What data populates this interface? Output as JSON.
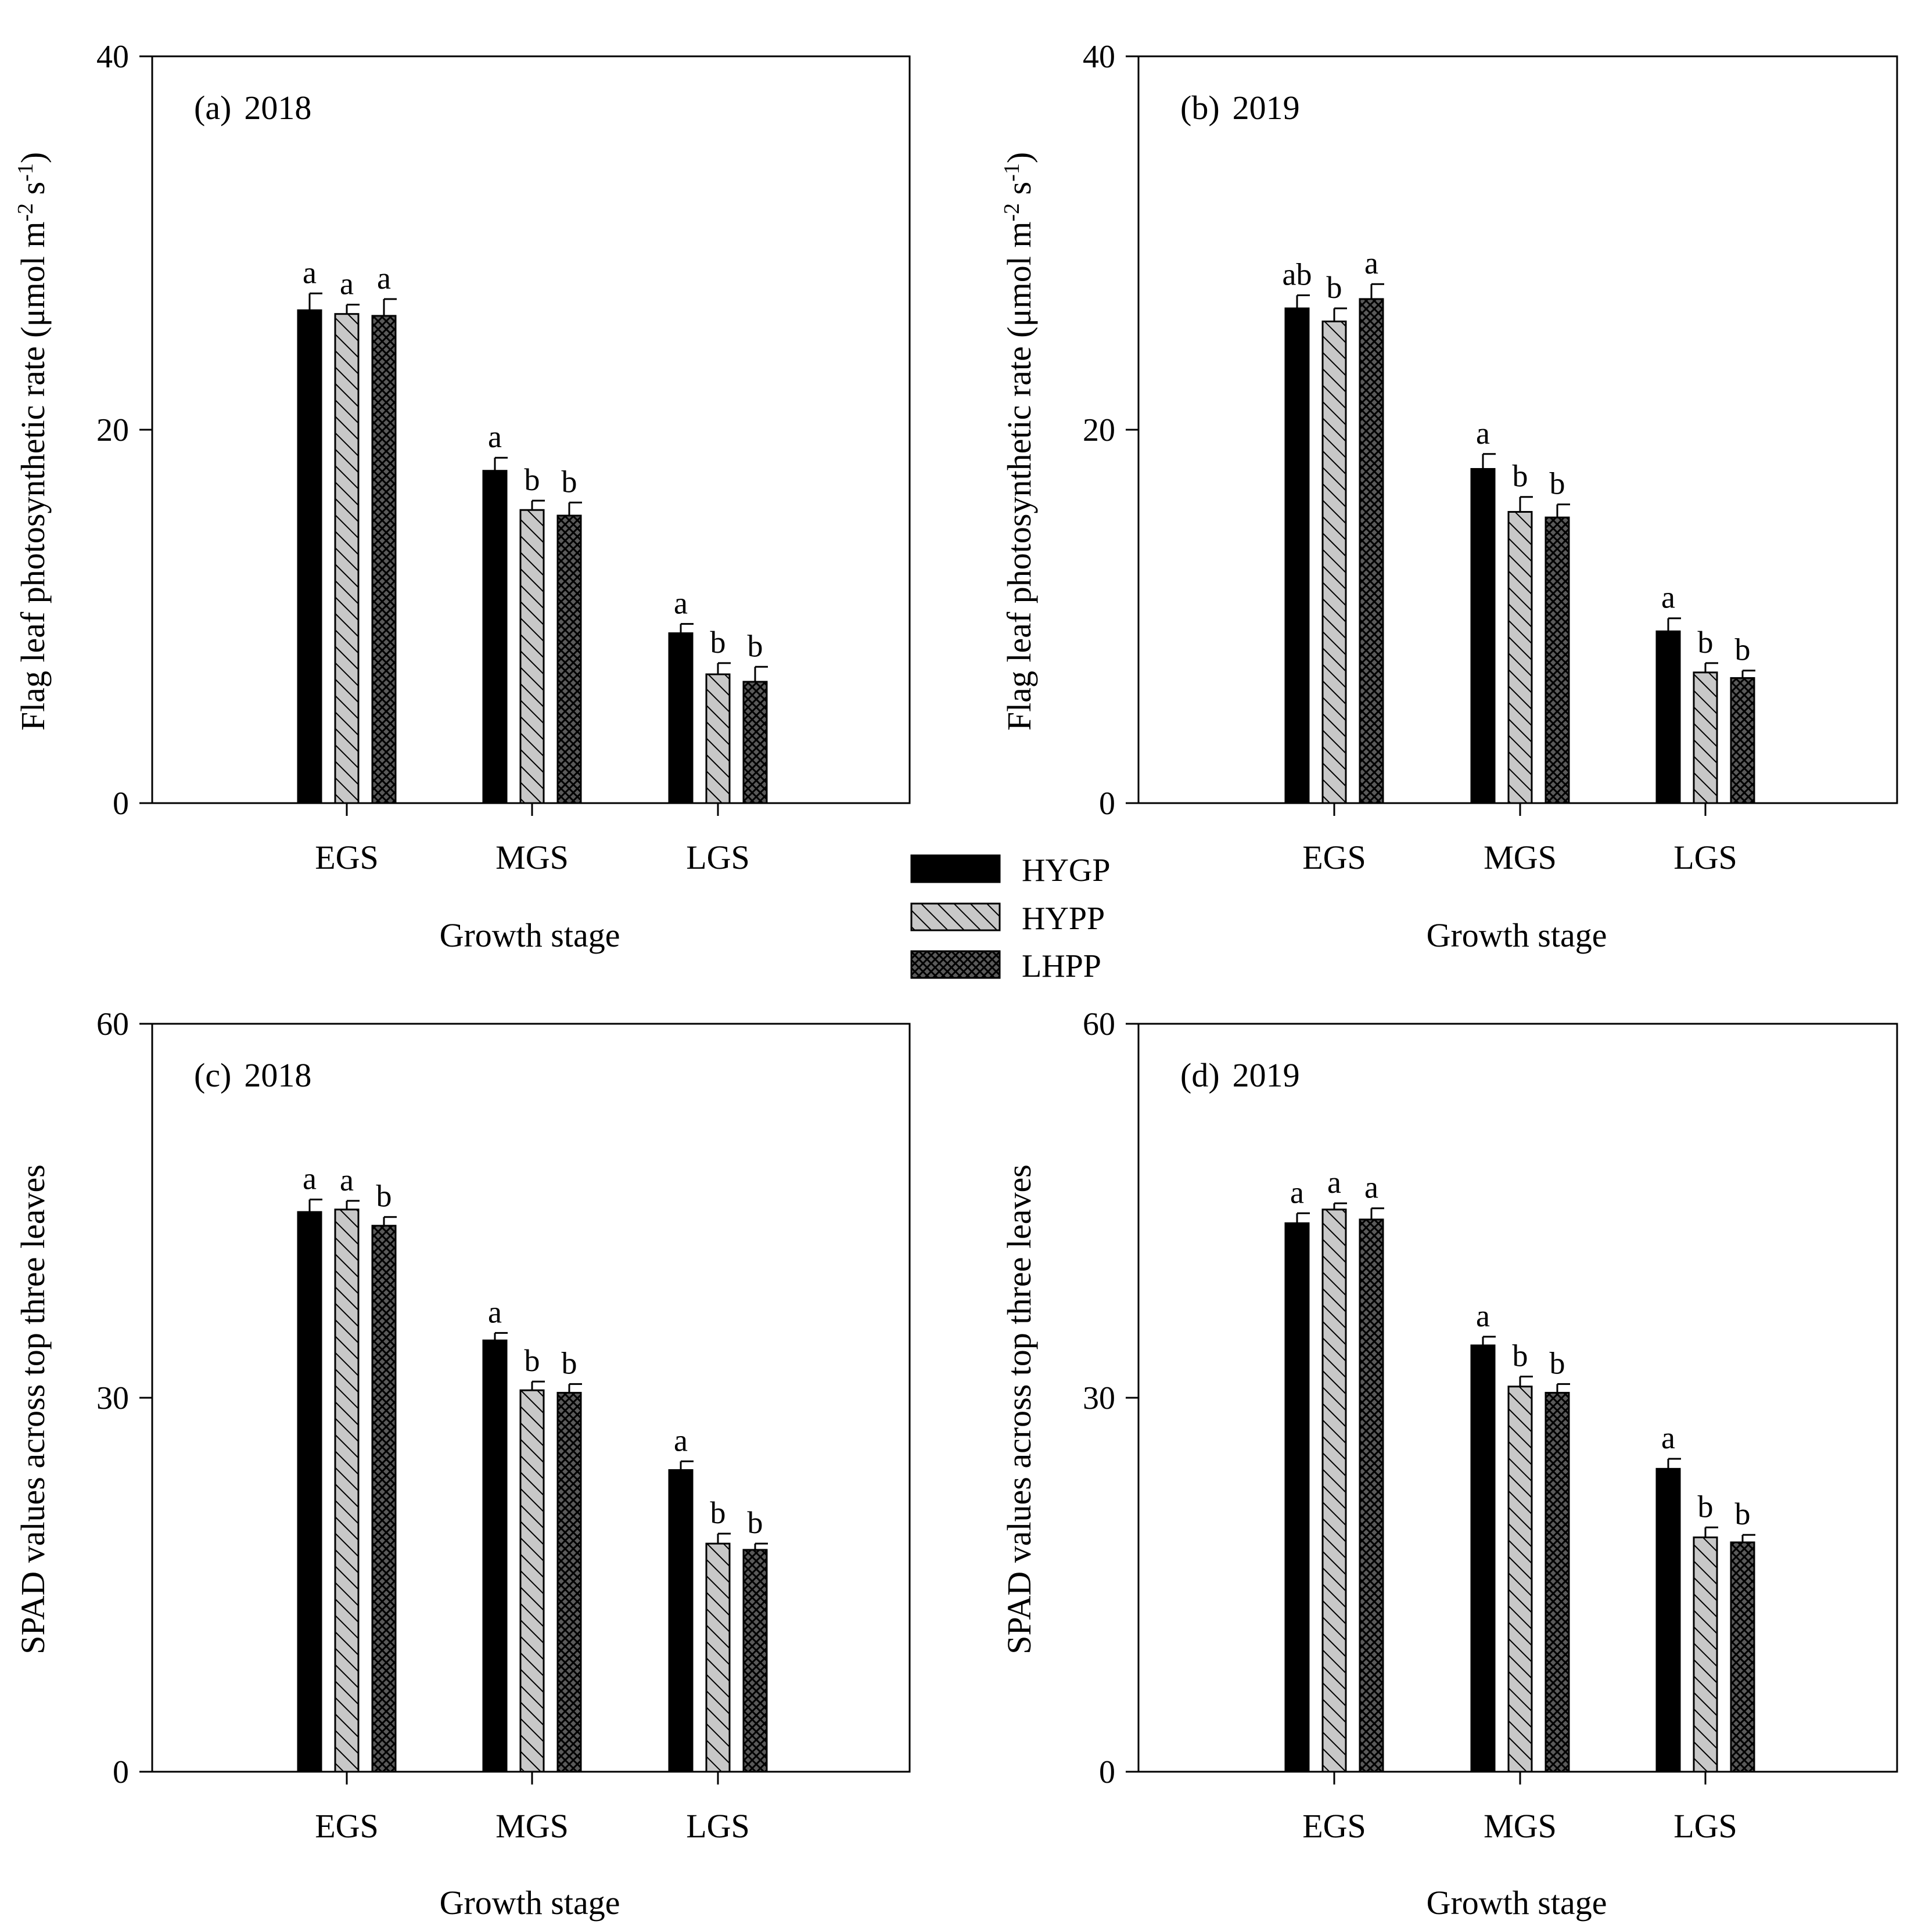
{
  "figure": {
    "legend": [
      {
        "name": "HYGP",
        "pattern": "solid"
      },
      {
        "name": "HYPP",
        "pattern": "diagonal"
      },
      {
        "name": "LHPP",
        "pattern": "crosshatch"
      }
    ],
    "colors": {
      "solid": "#000000",
      "diagonal_bg": "#c8c8c8",
      "crosshatch_bg": "#5a5a5a",
      "ink": "#000000"
    }
  },
  "chart_data": [
    {
      "id": "a",
      "type": "bar",
      "tag": "(a)",
      "year": "2018",
      "title": "(a) 2018",
      "categories": [
        "EGS",
        "MGS",
        "LGS"
      ],
      "xlabel": "Growth stage",
      "ylabel": "Flag leaf photosynthetic rate (μmol m-2 s-1)",
      "ylabel_parts": {
        "main": "Flag leaf photosynthetic rate (μmol m",
        "sup1": "-2",
        "mid": " s",
        "sup2": "-1",
        "end": ")"
      },
      "ylim": [
        0,
        40
      ],
      "yticks": [
        0,
        20,
        40
      ],
      "series": [
        {
          "name": "HYGP",
          "values": [
            26.4,
            17.8,
            9.1
          ],
          "errors": [
            0.9,
            0.7,
            0.5
          ],
          "letters": [
            "a",
            "a",
            "a"
          ]
        },
        {
          "name": "HYPP",
          "values": [
            26.2,
            15.7,
            6.9
          ],
          "errors": [
            0.5,
            0.5,
            0.6
          ],
          "letters": [
            "a",
            "b",
            "b"
          ]
        },
        {
          "name": "LHPP",
          "values": [
            26.1,
            15.4,
            6.5
          ],
          "errors": [
            0.9,
            0.7,
            0.8
          ],
          "letters": [
            "a",
            "b",
            "b"
          ]
        }
      ]
    },
    {
      "id": "b",
      "type": "bar",
      "tag": "(b)",
      "year": "2019",
      "title": "(b) 2019",
      "categories": [
        "EGS",
        "MGS",
        "LGS"
      ],
      "xlabel": "Growth stage",
      "ylabel": "Flag leaf photosynthetic rate (μmol m-2 s-1)",
      "ylabel_parts": {
        "main": "Flag leaf photosynthetic rate (μmol m",
        "sup1": "-2",
        "mid": " s",
        "sup2": "-1",
        "end": ")"
      },
      "ylim": [
        0,
        40
      ],
      "yticks": [
        0,
        20,
        40
      ],
      "series": [
        {
          "name": "HYGP",
          "values": [
            26.5,
            17.9,
            9.2
          ],
          "errors": [
            0.7,
            0.8,
            0.7
          ],
          "letters": [
            "ab",
            "a",
            "a"
          ]
        },
        {
          "name": "HYPP",
          "values": [
            25.8,
            15.6,
            7.0
          ],
          "errors": [
            0.7,
            0.8,
            0.5
          ],
          "letters": [
            "b",
            "b",
            "b"
          ]
        },
        {
          "name": "LHPP",
          "values": [
            27.0,
            15.3,
            6.7
          ],
          "errors": [
            0.8,
            0.7,
            0.4
          ],
          "letters": [
            "a",
            "b",
            "b"
          ]
        }
      ]
    },
    {
      "id": "c",
      "type": "bar",
      "tag": "(c)",
      "year": "2018",
      "title": "(c) 2018",
      "categories": [
        "EGS",
        "MGS",
        "LGS"
      ],
      "xlabel": "Growth stage",
      "ylabel": "SPAD values across top three leaves",
      "ylim": [
        0,
        60
      ],
      "yticks": [
        0,
        30,
        60
      ],
      "series": [
        {
          "name": "HYGP",
          "values": [
            44.9,
            34.6,
            24.2
          ],
          "errors": [
            1.0,
            0.6,
            0.7
          ],
          "letters": [
            "a",
            "a",
            "a"
          ]
        },
        {
          "name": "HYPP",
          "values": [
            45.1,
            30.6,
            18.3
          ],
          "errors": [
            0.7,
            0.7,
            0.8
          ],
          "letters": [
            "a",
            "b",
            "b"
          ]
        },
        {
          "name": "LHPP",
          "values": [
            43.8,
            30.4,
            17.8
          ],
          "errors": [
            0.7,
            0.7,
            0.5
          ],
          "letters": [
            "b",
            "b",
            "b"
          ]
        }
      ]
    },
    {
      "id": "d",
      "type": "bar",
      "tag": "(d)",
      "year": "2019",
      "title": "(d) 2019",
      "categories": [
        "EGS",
        "MGS",
        "LGS"
      ],
      "xlabel": "Growth stage",
      "ylabel": "SPAD values across top three leaves",
      "ylim": [
        0,
        60
      ],
      "yticks": [
        0,
        30,
        60
      ],
      "series": [
        {
          "name": "HYGP",
          "values": [
            44.0,
            34.2,
            24.3
          ],
          "errors": [
            0.8,
            0.7,
            0.8
          ],
          "letters": [
            "a",
            "a",
            "a"
          ]
        },
        {
          "name": "HYPP",
          "values": [
            45.1,
            30.9,
            18.8
          ],
          "errors": [
            0.5,
            0.8,
            0.8
          ],
          "letters": [
            "a",
            "b",
            "b"
          ]
        },
        {
          "name": "LHPP",
          "values": [
            44.3,
            30.4,
            18.4
          ],
          "errors": [
            0.9,
            0.7,
            0.6
          ],
          "letters": [
            "a",
            "b",
            "b"
          ]
        }
      ]
    }
  ]
}
